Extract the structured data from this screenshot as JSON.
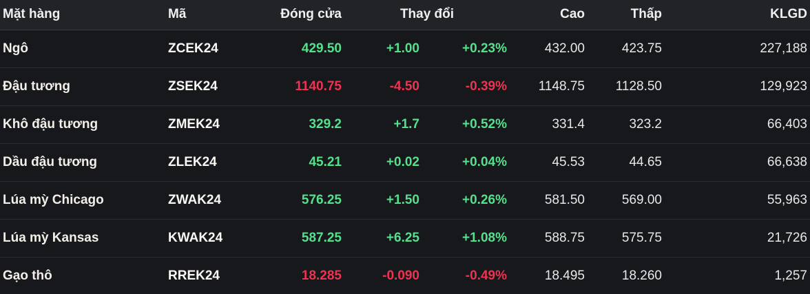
{
  "colors": {
    "up": "#55e08c",
    "down": "#ee3350",
    "header_bg": "#222327",
    "row_bg": "#17181c",
    "header_divider": "#403e35",
    "row_divider": "#2b2d31"
  },
  "table": {
    "headers": {
      "name": "Mặt hàng",
      "code": "Mã",
      "close": "Đóng cửa",
      "change": "Thay đổi",
      "high": "Cao",
      "low": "Thấp",
      "volume": "KLGD"
    },
    "rows": [
      {
        "name": "Ngô",
        "code": "ZCEK24",
        "close": "429.50",
        "change": "+1.00",
        "change_pct": "+0.23%",
        "high": "432.00",
        "low": "423.75",
        "volume": "227,188",
        "direction": "up"
      },
      {
        "name": "Đậu tương",
        "code": "ZSEK24",
        "close": "1140.75",
        "change": "-4.50",
        "change_pct": "-0.39%",
        "high": "1148.75",
        "low": "1128.50",
        "volume": "129,923",
        "direction": "down"
      },
      {
        "name": "Khô đậu tương",
        "code": "ZMEK24",
        "close": "329.2",
        "change": "+1.7",
        "change_pct": "+0.52%",
        "high": "331.4",
        "low": "323.2",
        "volume": "66,403",
        "direction": "up"
      },
      {
        "name": "Dầu đậu tương",
        "code": "ZLEK24",
        "close": "45.21",
        "change": "+0.02",
        "change_pct": "+0.04%",
        "high": "45.53",
        "low": "44.65",
        "volume": "66,638",
        "direction": "up"
      },
      {
        "name": "Lúa mỳ Chicago",
        "code": "ZWAK24",
        "close": "576.25",
        "change": "+1.50",
        "change_pct": "+0.26%",
        "high": "581.50",
        "low": "569.00",
        "volume": "55,963",
        "direction": "up"
      },
      {
        "name": "Lúa mỳ Kansas",
        "code": "KWAK24",
        "close": "587.25",
        "change": "+6.25",
        "change_pct": "+1.08%",
        "high": "588.75",
        "low": "575.75",
        "volume": "21,726",
        "direction": "up"
      },
      {
        "name": "Gạo thô",
        "code": "RREK24",
        "close": "18.285",
        "change": "-0.090",
        "change_pct": "-0.49%",
        "high": "18.495",
        "low": "18.260",
        "volume": "1,257",
        "direction": "down"
      }
    ]
  }
}
